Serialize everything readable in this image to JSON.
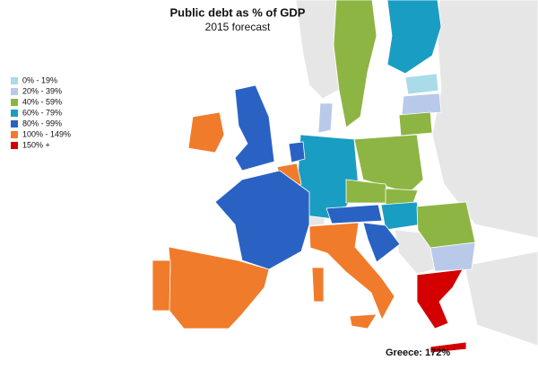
{
  "title": "Public debt as % of GDP",
  "subtitle": "2015 forecast",
  "legend": [
    {
      "label": "0% - 19%",
      "color": "#a9dbe8"
    },
    {
      "label": "20% - 39%",
      "color": "#b9c9ea"
    },
    {
      "label": "40% - 59%",
      "color": "#8db543"
    },
    {
      "label": "60% - 79%",
      "color": "#1a9dc3"
    },
    {
      "label": "80% - 99%",
      "color": "#2a62c4"
    },
    {
      "label": "100% - 149%",
      "color": "#f07b2b"
    },
    {
      "label": "150% +",
      "color": "#d40000"
    }
  ],
  "annotation": "Greece: 172%"
}
